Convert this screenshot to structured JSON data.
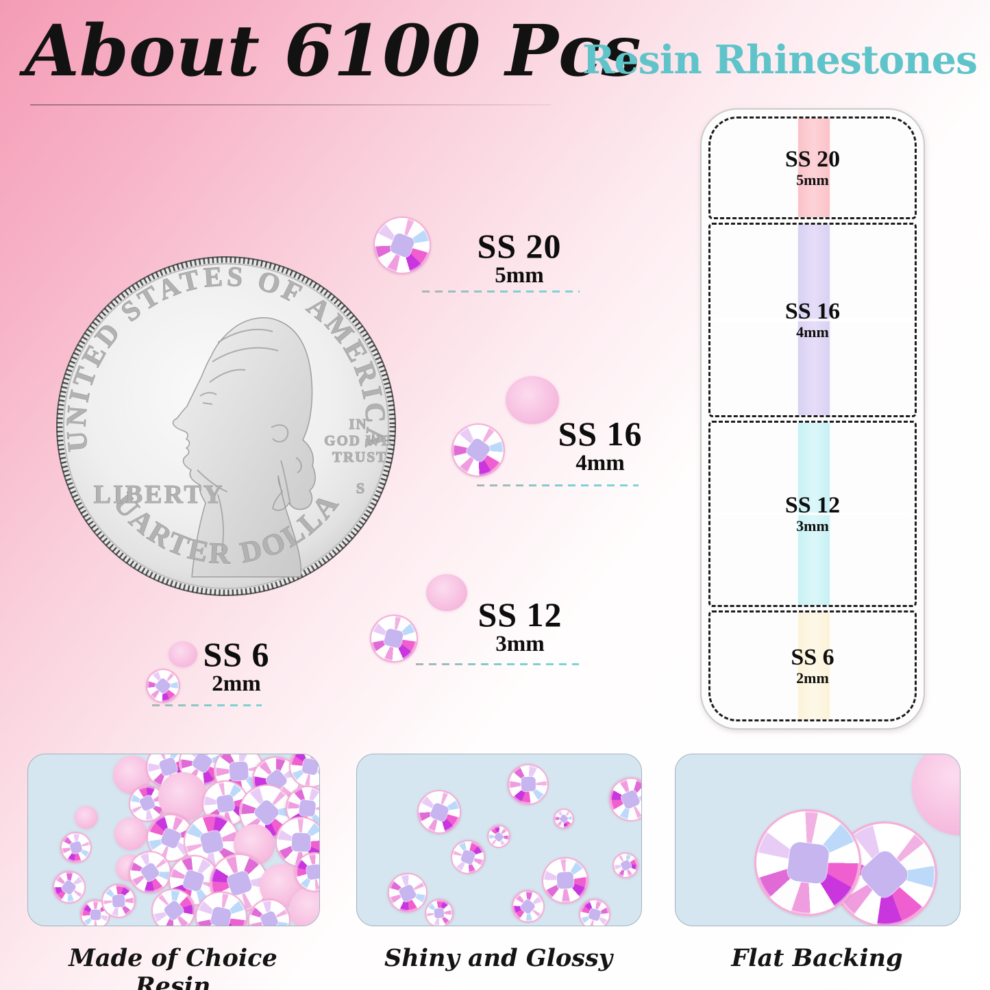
{
  "title": "About 6100 Pcs",
  "subtitle": "Resin Rhinestones",
  "coin": {
    "top_arc": "UNITED STATES OF AMERICA",
    "bottom_arc": "QUARTER DOLLAR",
    "liberty": "LIBERTY",
    "motto1": "IN",
    "motto2": "GOD WE",
    "motto3": "TRUST",
    "mint_mark": "S"
  },
  "sizes": [
    {
      "label": "SS 20",
      "mm": "5mm"
    },
    {
      "label": "SS 16",
      "mm": "4mm"
    },
    {
      "label": "SS 12",
      "mm": "3mm"
    },
    {
      "label": "SS 6",
      "mm": "2mm"
    }
  ],
  "box": {
    "sections": [
      {
        "label": "SS 20",
        "mm": "5mm",
        "base_color": "#f7a9b0"
      },
      {
        "label": "SS 16",
        "mm": "4mm",
        "base_color": "#d8cdf0"
      },
      {
        "label": "SS 12",
        "mm": "3mm",
        "base_color": "#bfeaf0"
      },
      {
        "label": "SS 6",
        "mm": "2mm",
        "base_color": "#fae3d3"
      }
    ]
  },
  "features": [
    {
      "caption": "Made of Choice Resin"
    },
    {
      "caption": "Shiny and Glossy"
    },
    {
      "caption": "Flat Backing"
    }
  ],
  "colors": {
    "subtitle_teal": "#5fc4c9",
    "underline_teal": "#7ed0d0",
    "background_pink": "#f49cb6",
    "box_dash": "#1c1c1c",
    "panel_blue": "#d5e6f0"
  }
}
